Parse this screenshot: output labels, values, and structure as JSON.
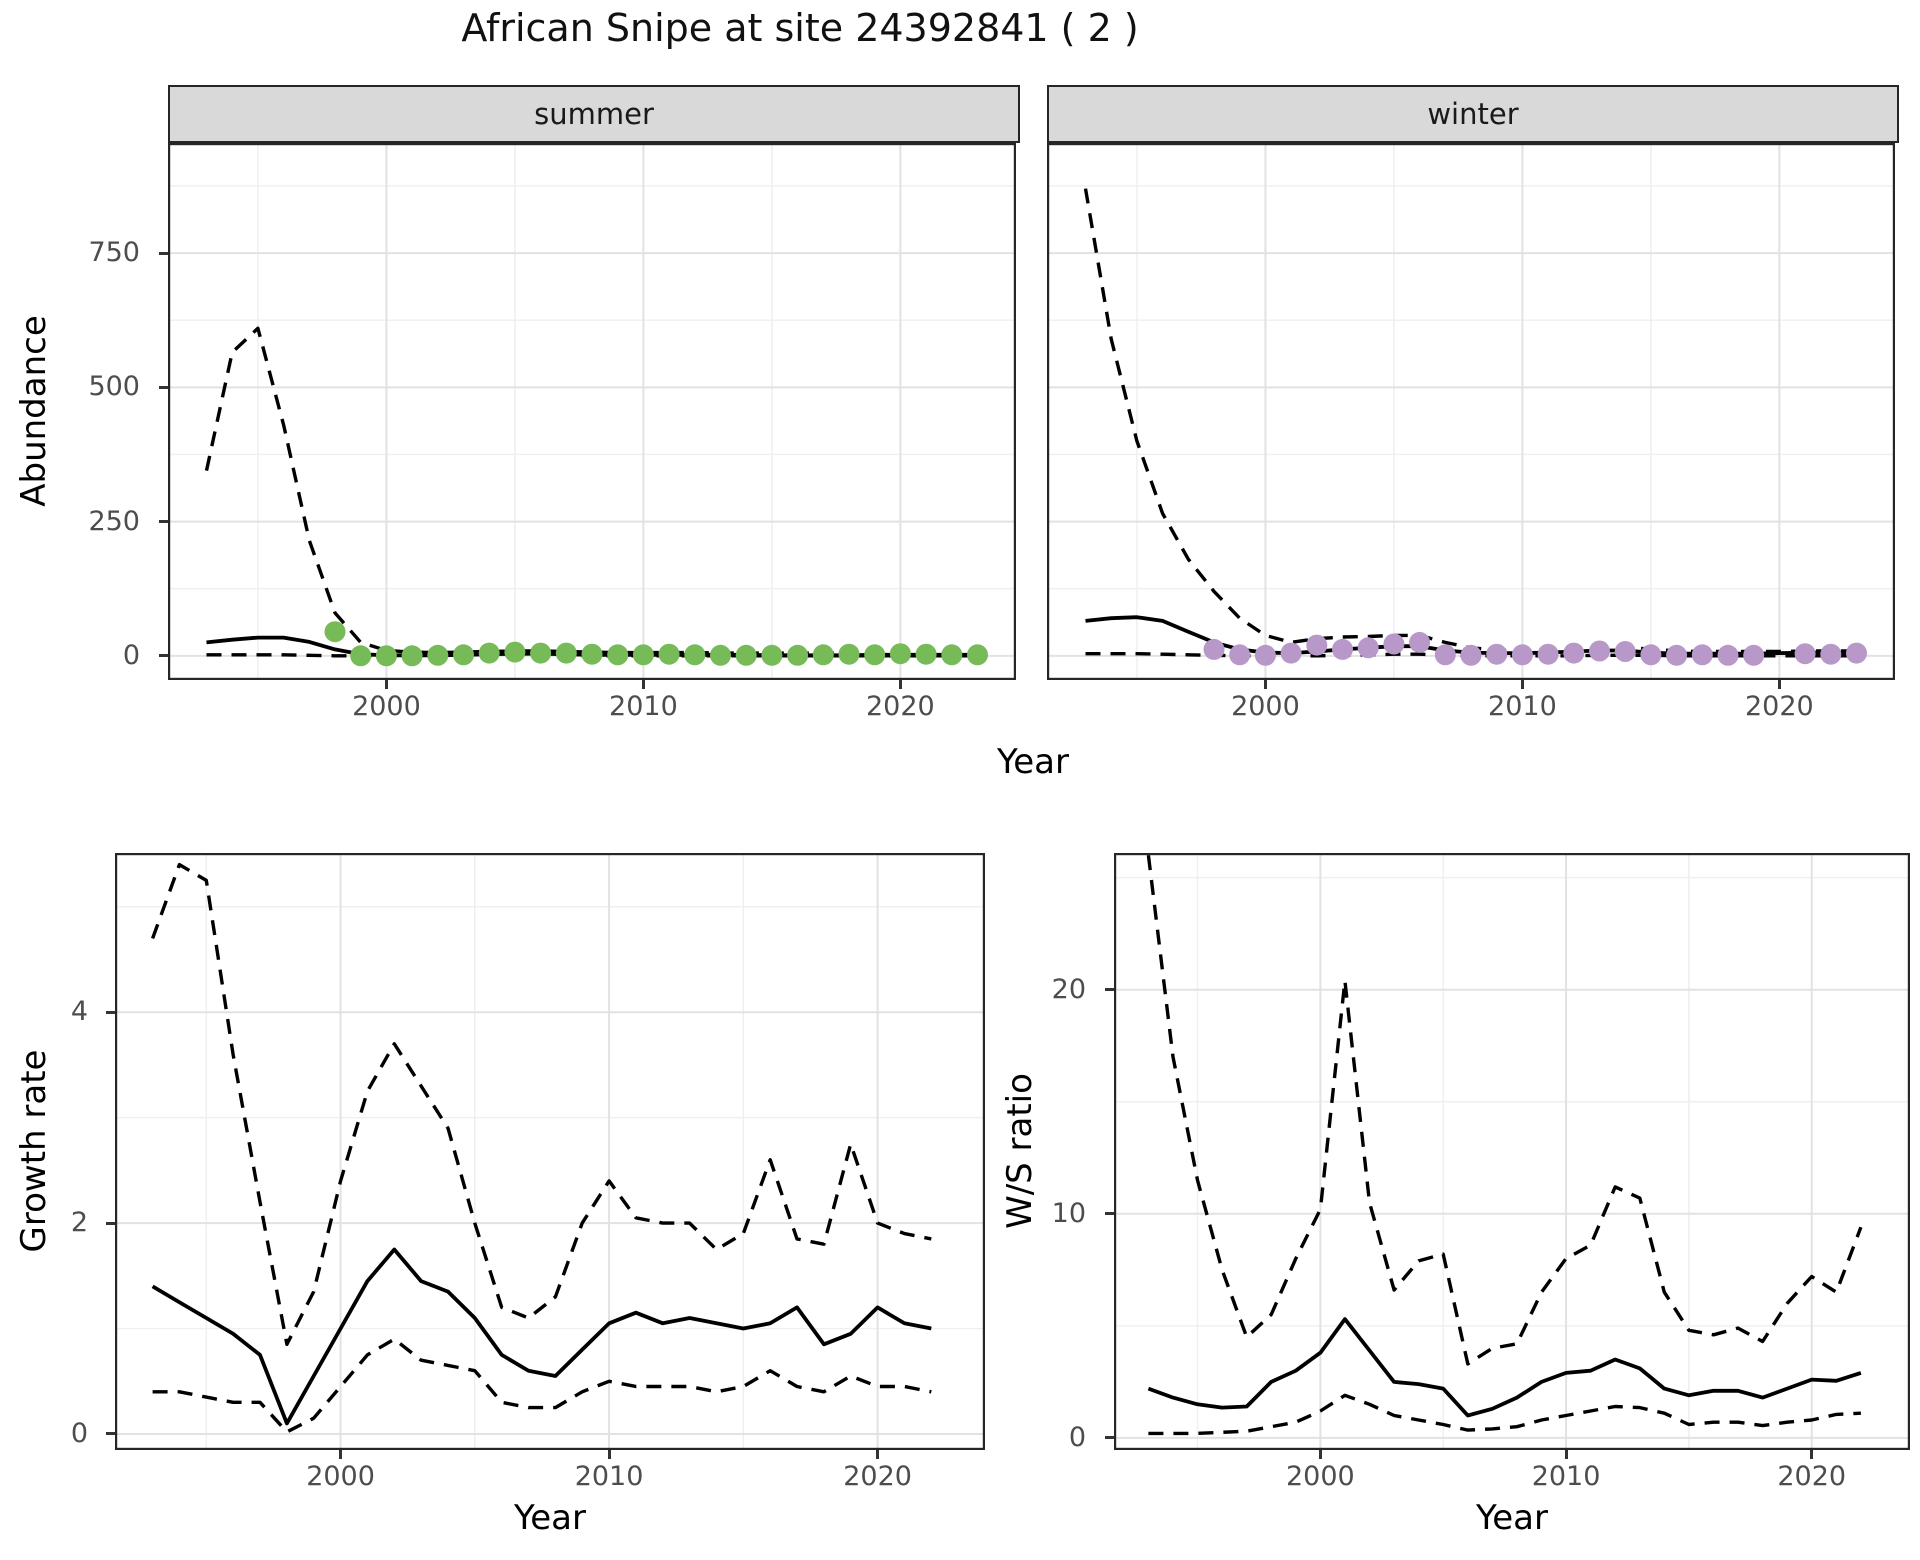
{
  "title": "African Snipe at site 24392841 ( 2 )",
  "axes": {
    "abundance_label": "Abundance",
    "year_label": "Year",
    "growth_label": "Growth rate",
    "ws_label": "W/S ratio"
  },
  "facets": {
    "summer": "summer",
    "winter": "winter"
  },
  "colors": {
    "summer_point": "#77bb59",
    "winter_point": "#b897c9",
    "line": "#000000",
    "strip_bg": "#d9d9d9",
    "panel_border": "#262626",
    "grid_major": "#e2e2e2",
    "grid_minor": "#efefef",
    "axis_text": "#4d4d4d"
  },
  "chart_data": [
    {
      "id": "summer_abundance",
      "type": "line+scatter",
      "facet": "summer",
      "ylabel": "Abundance",
      "xlabel": "Year",
      "xticks": [
        2000,
        2010,
        2020
      ],
      "yticks": [
        0,
        250,
        500,
        750
      ],
      "ylim": [
        0,
        950
      ],
      "x": [
        1993,
        1994,
        1995,
        1996,
        1997,
        1998,
        1999,
        2000,
        2001,
        2002,
        2003,
        2004,
        2005,
        2006,
        2007,
        2008,
        2009,
        2010,
        2011,
        2012,
        2013,
        2014,
        2015,
        2016,
        2017,
        2018,
        2019,
        2020,
        2021,
        2022,
        2023
      ],
      "series": [
        {
          "name": "fit",
          "style": "solid",
          "values": [
            25,
            30,
            34,
            34,
            26,
            12,
            3,
            1,
            1,
            1,
            2,
            3,
            4,
            4,
            3,
            2,
            2,
            2,
            2,
            2,
            2,
            2,
            1,
            1,
            1,
            1,
            2,
            2,
            2,
            2,
            2
          ]
        },
        {
          "name": "upper_ci",
          "style": "dashed",
          "values": [
            345,
            565,
            610,
            430,
            215,
            80,
            25,
            10,
            7,
            6,
            7,
            8,
            9,
            9,
            8,
            7,
            6,
            6,
            6,
            6,
            5,
            5,
            5,
            5,
            5,
            5,
            5,
            5,
            5,
            5,
            5
          ]
        },
        {
          "name": "lower_ci",
          "style": "dashed",
          "values": [
            2,
            2,
            2,
            2,
            1,
            0,
            0,
            0,
            0,
            0,
            0,
            0,
            0,
            0,
            0,
            0,
            0,
            0,
            0,
            0,
            0,
            0,
            0,
            0,
            0,
            0,
            0,
            0,
            0,
            0,
            0
          ]
        }
      ],
      "points": {
        "color": "#77bb59",
        "years": [
          1998,
          1999,
          2000,
          2001,
          2002,
          2003,
          2004,
          2005,
          2006,
          2007,
          2008,
          2009,
          2010,
          2011,
          2012,
          2013,
          2014,
          2015,
          2016,
          2017,
          2018,
          2019,
          2020,
          2021,
          2022,
          2023
        ],
        "values": [
          45,
          0,
          0,
          0,
          1,
          2,
          5,
          7,
          5,
          5,
          3,
          2,
          2,
          3,
          2,
          1,
          1,
          1,
          1,
          2,
          3,
          2,
          4,
          3,
          2,
          2
        ]
      }
    },
    {
      "id": "winter_abundance",
      "type": "line+scatter",
      "facet": "winter",
      "ylabel": "Abundance",
      "xlabel": "Year",
      "xticks": [
        2000,
        2010,
        2020
      ],
      "yticks": [
        0,
        250,
        500,
        750
      ],
      "ylim": [
        0,
        950
      ],
      "x": [
        1993,
        1994,
        1995,
        1996,
        1997,
        1998,
        1999,
        2000,
        2001,
        2002,
        2003,
        2004,
        2005,
        2006,
        2007,
        2008,
        2009,
        2010,
        2011,
        2012,
        2013,
        2014,
        2015,
        2016,
        2017,
        2018,
        2019,
        2020,
        2021,
        2022,
        2023
      ],
      "series": [
        {
          "name": "fit",
          "style": "solid",
          "values": [
            65,
            70,
            72,
            65,
            45,
            25,
            12,
            6,
            5,
            8,
            12,
            15,
            18,
            18,
            10,
            6,
            5,
            5,
            6,
            8,
            10,
            10,
            6,
            4,
            4,
            4,
            4,
            5,
            6,
            6,
            6
          ]
        },
        {
          "name": "upper_ci",
          "style": "dashed",
          "values": [
            870,
            590,
            400,
            265,
            180,
            120,
            70,
            38,
            25,
            32,
            35,
            36,
            38,
            38,
            25,
            15,
            11,
            9,
            9,
            10,
            13,
            15,
            13,
            9,
            8,
            8,
            8,
            8,
            9,
            9,
            9
          ]
        },
        {
          "name": "lower_ci",
          "style": "dashed",
          "values": [
            4,
            4,
            4,
            3,
            2,
            1,
            0,
            0,
            0,
            0,
            1,
            2,
            3,
            3,
            1,
            0,
            0,
            0,
            0,
            0,
            1,
            1,
            1,
            0,
            0,
            0,
            0,
            0,
            0,
            0,
            0
          ]
        }
      ],
      "points": {
        "color": "#b897c9",
        "years": [
          1998,
          1999,
          2000,
          2001,
          2002,
          2003,
          2004,
          2005,
          2006,
          2007,
          2008,
          2009,
          2010,
          2011,
          2012,
          2013,
          2014,
          2015,
          2016,
          2017,
          2018,
          2019,
          2021,
          2022,
          2023
        ],
        "values": [
          12,
          2,
          1,
          5,
          20,
          12,
          15,
          22,
          25,
          2,
          1,
          3,
          2,
          3,
          5,
          9,
          8,
          2,
          1,
          2,
          1,
          1,
          4,
          3,
          5
        ]
      }
    },
    {
      "id": "growth_rate",
      "type": "line",
      "ylabel": "Growth rate",
      "xlabel": "Year",
      "xticks": [
        2000,
        2010,
        2020
      ],
      "yticks": [
        0,
        2,
        4
      ],
      "ylim": [
        0,
        5.5
      ],
      "x": [
        1993,
        1994,
        1995,
        1996,
        1997,
        1998,
        1999,
        2000,
        2001,
        2002,
        2003,
        2004,
        2005,
        2006,
        2007,
        2008,
        2009,
        2010,
        2011,
        2012,
        2013,
        2014,
        2015,
        2016,
        2017,
        2018,
        2019,
        2020,
        2021,
        2022
      ],
      "series": [
        {
          "name": "fit",
          "style": "solid",
          "values": [
            1.4,
            1.25,
            1.1,
            0.95,
            0.75,
            0.1,
            0.55,
            1.0,
            1.45,
            1.75,
            1.45,
            1.35,
            1.1,
            0.75,
            0.6,
            0.55,
            0.8,
            1.05,
            1.15,
            1.05,
            1.1,
            1.05,
            1.0,
            1.05,
            1.2,
            0.85,
            0.95,
            1.2,
            1.05,
            1.0
          ]
        },
        {
          "name": "upper_ci",
          "style": "dashed",
          "values": [
            4.7,
            5.4,
            5.25,
            3.6,
            2.2,
            0.85,
            1.35,
            2.4,
            3.25,
            3.7,
            3.3,
            2.9,
            2.0,
            1.2,
            1.1,
            1.3,
            2.0,
            2.4,
            2.05,
            2.0,
            2.0,
            1.75,
            1.9,
            2.6,
            1.85,
            1.8,
            2.75,
            2.0,
            1.9,
            1.85
          ]
        },
        {
          "name": "lower_ci",
          "style": "dashed",
          "values": [
            0.4,
            0.4,
            0.35,
            0.3,
            0.3,
            0.02,
            0.15,
            0.45,
            0.75,
            0.9,
            0.7,
            0.65,
            0.6,
            0.3,
            0.25,
            0.25,
            0.4,
            0.5,
            0.45,
            0.45,
            0.45,
            0.4,
            0.45,
            0.6,
            0.45,
            0.4,
            0.55,
            0.45,
            0.45,
            0.4
          ]
        }
      ]
    },
    {
      "id": "ws_ratio",
      "type": "line",
      "ylabel": "W/S ratio",
      "xlabel": "Year",
      "xticks": [
        2000,
        2010,
        2020
      ],
      "yticks": [
        0,
        10,
        20
      ],
      "ylim": [
        0,
        26.1
      ],
      "x": [
        1993,
        1994,
        1995,
        1996,
        1997,
        1998,
        1999,
        2000,
        2001,
        2002,
        2003,
        2004,
        2005,
        2006,
        2007,
        2008,
        2009,
        2010,
        2011,
        2012,
        2013,
        2014,
        2015,
        2016,
        2017,
        2018,
        2019,
        2020,
        2021,
        2022
      ],
      "series": [
        {
          "name": "fit",
          "style": "solid",
          "values": [
            2.2,
            1.8,
            1.5,
            1.35,
            1.4,
            2.5,
            3.0,
            3.8,
            5.3,
            3.9,
            2.5,
            2.4,
            2.2,
            1.0,
            1.3,
            1.8,
            2.5,
            2.9,
            3.0,
            3.5,
            3.1,
            2.2,
            1.9,
            2.1,
            2.1,
            1.8,
            2.2,
            2.6,
            2.55,
            2.9
          ]
        },
        {
          "name": "upper_ci",
          "style": "dashed",
          "values": [
            26,
            17,
            11.5,
            7.5,
            4.5,
            5.5,
            8.0,
            10.2,
            20.4,
            10.5,
            6.6,
            7.9,
            8.2,
            3.3,
            4.0,
            4.2,
            6.5,
            8.0,
            8.6,
            11.2,
            10.7,
            6.5,
            4.8,
            4.6,
            4.9,
            4.3,
            6.0,
            7.2,
            6.5,
            9.4
          ]
        },
        {
          "name": "lower_ci",
          "style": "dashed",
          "values": [
            0.2,
            0.2,
            0.2,
            0.25,
            0.3,
            0.5,
            0.7,
            1.2,
            1.9,
            1.5,
            1.0,
            0.8,
            0.6,
            0.35,
            0.4,
            0.5,
            0.8,
            1.0,
            1.2,
            1.4,
            1.35,
            1.1,
            0.6,
            0.7,
            0.7,
            0.55,
            0.7,
            0.8,
            1.05,
            1.1
          ]
        }
      ]
    }
  ]
}
